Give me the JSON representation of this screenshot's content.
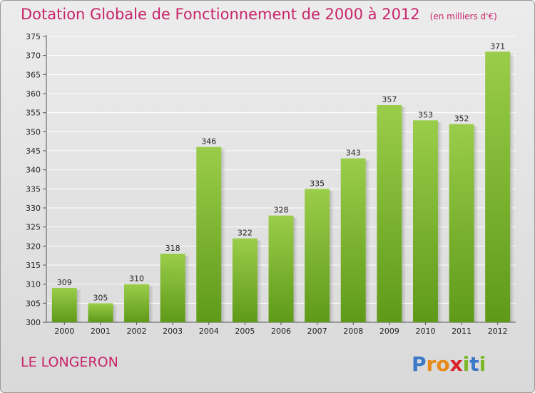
{
  "header": {
    "title": "Dotation Globale de Fonctionnement de 2000 à 2012",
    "unit": "(en milliers d'€)"
  },
  "footer": {
    "commune": "LE LONGERON",
    "logo_text": "Proxiti"
  },
  "colors": {
    "title": "#c8246a",
    "bar_top": "#9acd4a",
    "bar_bottom": "#5e9a18",
    "grid": "#ffffff",
    "background": "#e3e3e3"
  },
  "chart_data": {
    "type": "bar",
    "title": "Dotation Globale de Fonctionnement de 2000 à 2012",
    "subtitle": "(en milliers d'€)",
    "categories": [
      "2000",
      "2001",
      "2002",
      "2003",
      "2004",
      "2005",
      "2006",
      "2007",
      "2008",
      "2009",
      "2010",
      "2011",
      "2012"
    ],
    "values": [
      309,
      305,
      310,
      318,
      346,
      322,
      328,
      335,
      343,
      357,
      353,
      352,
      371
    ],
    "ylim": [
      300,
      375
    ],
    "ytick_step": 5,
    "grid": true,
    "data_labels": true
  }
}
